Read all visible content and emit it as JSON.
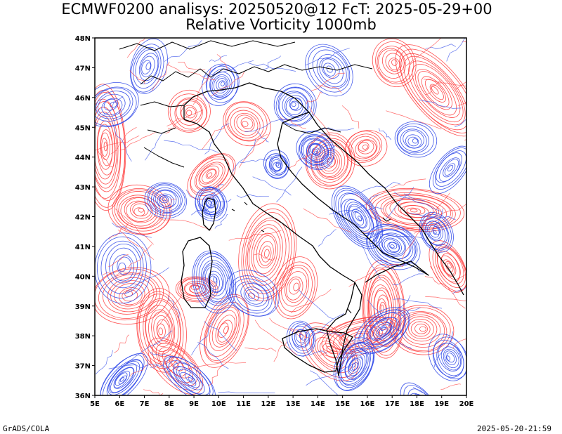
{
  "header": {
    "title_line1": "ECMWF0200 analisys: 20250520@12 FcT: 2025-05-29+00",
    "title_line2": "Relative Vorticity 1000mb"
  },
  "map": {
    "lon_ticks": [
      "5E",
      "6E",
      "7E",
      "8E",
      "9E",
      "10E",
      "11E",
      "12E",
      "13E",
      "14E",
      "15E",
      "16E",
      "17E",
      "18E",
      "19E",
      "20E"
    ],
    "lat_ticks": [
      "36N",
      "37N",
      "38N",
      "39N",
      "40N",
      "41N",
      "42N",
      "43N",
      "44N",
      "45N",
      "46N",
      "47N",
      "48N"
    ],
    "lon_range": [
      5,
      20
    ],
    "lat_range": [
      36,
      48
    ],
    "colors": {
      "positive_vorticity": "#ff3b3b",
      "negative_vorticity": "#2b45e8",
      "coastline": "#000000"
    }
  },
  "footer": {
    "left": "GrADS/COLA",
    "right": "2025-05-20-21:59"
  }
}
